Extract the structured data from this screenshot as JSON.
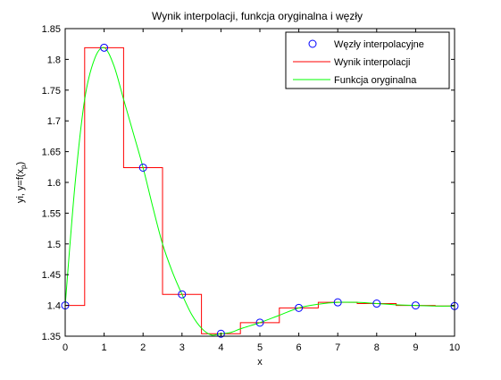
{
  "chart_data": {
    "type": "line",
    "title": "Wynik interpolacji, funkcja oryginalna i węzły",
    "xlabel": "x",
    "ylabel": "yi, y=f(x",
    "ylabel_sub": "p",
    "ylabel_close": ")",
    "xlim": [
      0,
      10
    ],
    "ylim": [
      1.35,
      1.85
    ],
    "xticks": [
      0,
      1,
      2,
      3,
      4,
      5,
      6,
      7,
      8,
      9,
      10
    ],
    "xtick_labels": [
      "0",
      "1",
      "2",
      "3",
      "4",
      "5",
      "6",
      "7",
      "8",
      "9",
      "10"
    ],
    "yticks": [
      1.35,
      1.4,
      1.45,
      1.5,
      1.55,
      1.6,
      1.65,
      1.7,
      1.75,
      1.8,
      1.85
    ],
    "ytick_labels": [
      "1.35",
      "1.4",
      "1.45",
      "1.5",
      "1.55",
      "1.6",
      "1.65",
      "1.7",
      "1.75",
      "1.8",
      "1.85"
    ],
    "grid": false,
    "legend_position": "top-right",
    "series": [
      {
        "name": "Węzły interpolacyjne",
        "kind": "markers",
        "marker": "circle",
        "color": "#0000ff",
        "x": [
          0,
          1,
          2,
          3,
          4,
          5,
          6,
          7,
          8,
          9,
          10
        ],
        "y": [
          1.4,
          1.819,
          1.624,
          1.418,
          1.354,
          1.372,
          1.396,
          1.405,
          1.403,
          1.4,
          1.399
        ]
      },
      {
        "name": "Wynik interpolacji",
        "kind": "step",
        "color": "#ff0000",
        "x": [
          0,
          0.45,
          0.5,
          1.5,
          2.5,
          3.5,
          4.5,
          5.5,
          6.5,
          7.5,
          8.5,
          9.5,
          10
        ],
        "y": [
          1.4,
          1.4,
          1.819,
          1.624,
          1.418,
          1.354,
          1.372,
          1.396,
          1.405,
          1.403,
          1.4,
          1.399,
          1.399
        ]
      },
      {
        "name": "Funkcja oryginalna",
        "kind": "line",
        "color": "#00ff00",
        "x": [
          0,
          0.25,
          0.5,
          0.75,
          1.0,
          1.25,
          1.5,
          1.75,
          2.0,
          2.25,
          2.5,
          2.75,
          3.0,
          3.25,
          3.5,
          3.75,
          4.0,
          4.25,
          4.5,
          4.75,
          5.0,
          5.5,
          6.0,
          6.5,
          7.0,
          7.5,
          8.0,
          8.5,
          9.0,
          9.5,
          10.0
        ],
        "y": [
          1.4,
          1.595,
          1.735,
          1.8,
          1.819,
          1.79,
          1.735,
          1.68,
          1.624,
          1.56,
          1.5,
          1.455,
          1.418,
          1.385,
          1.363,
          1.352,
          1.354,
          1.356,
          1.362,
          1.367,
          1.372,
          1.384,
          1.396,
          1.402,
          1.405,
          1.405,
          1.403,
          1.401,
          1.4,
          1.399,
          1.399
        ]
      }
    ]
  }
}
